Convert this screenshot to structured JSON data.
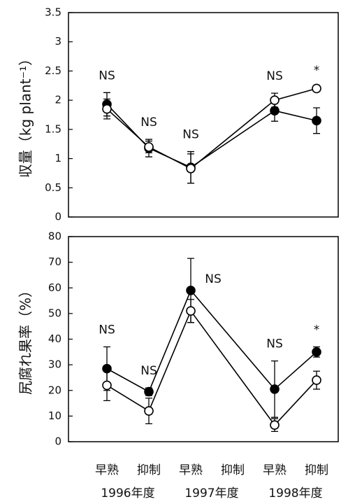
{
  "chart_data": [
    {
      "type": "line",
      "y_label": "収量（kg plant⁻¹）",
      "categories": [
        "早熟",
        "抑制",
        "早熟",
        "抑制",
        "早熟",
        "抑制"
      ],
      "groups": [
        "1996年度",
        "1997年度",
        "1998年度"
      ],
      "ylim": [
        0,
        3.5
      ],
      "yticks": [
        0,
        0.5,
        1,
        1.5,
        2,
        2.5,
        3,
        3.5
      ],
      "series": [
        {
          "marker": "filled",
          "color": "#000000",
          "values": [
            1.93,
            1.18,
            0.85,
            null,
            1.82,
            1.65
          ],
          "errors": [
            0.2,
            0.15,
            0.27,
            null,
            0.18,
            0.22
          ]
        },
        {
          "marker": "open",
          "color": "#000000",
          "values": [
            1.85,
            1.2,
            0.83,
            null,
            2.0,
            2.2
          ],
          "errors": [
            0.17,
            0.1,
            0.25,
            null,
            0.12,
            0.02
          ]
        }
      ],
      "annotations": [
        "NS",
        "NS",
        "NS",
        null,
        "NS",
        "*"
      ]
    },
    {
      "type": "line",
      "y_label": "尻腐れ果率（%）",
      "categories": [
        "早熟",
        "抑制",
        "早熟",
        "抑制",
        "早熟",
        "抑制"
      ],
      "groups": [
        "1996年度",
        "1997年度",
        "1998年度"
      ],
      "ylim": [
        0,
        80
      ],
      "yticks": [
        0,
        10,
        20,
        30,
        40,
        50,
        60,
        70,
        80
      ],
      "series": [
        {
          "marker": "filled",
          "color": "#000000",
          "values": [
            28.5,
            19.5,
            59,
            null,
            20.5,
            35
          ],
          "errors": [
            8.5,
            1.5,
            12.5,
            null,
            11,
            2
          ]
        },
        {
          "marker": "open",
          "color": "#000000",
          "values": [
            22,
            12,
            51,
            null,
            6.5,
            24
          ],
          "errors": [
            6,
            5,
            4.5,
            null,
            2.5,
            3.5
          ]
        }
      ],
      "annotations": [
        "NS",
        "NS",
        "NS",
        null,
        "NS",
        "*"
      ]
    }
  ]
}
